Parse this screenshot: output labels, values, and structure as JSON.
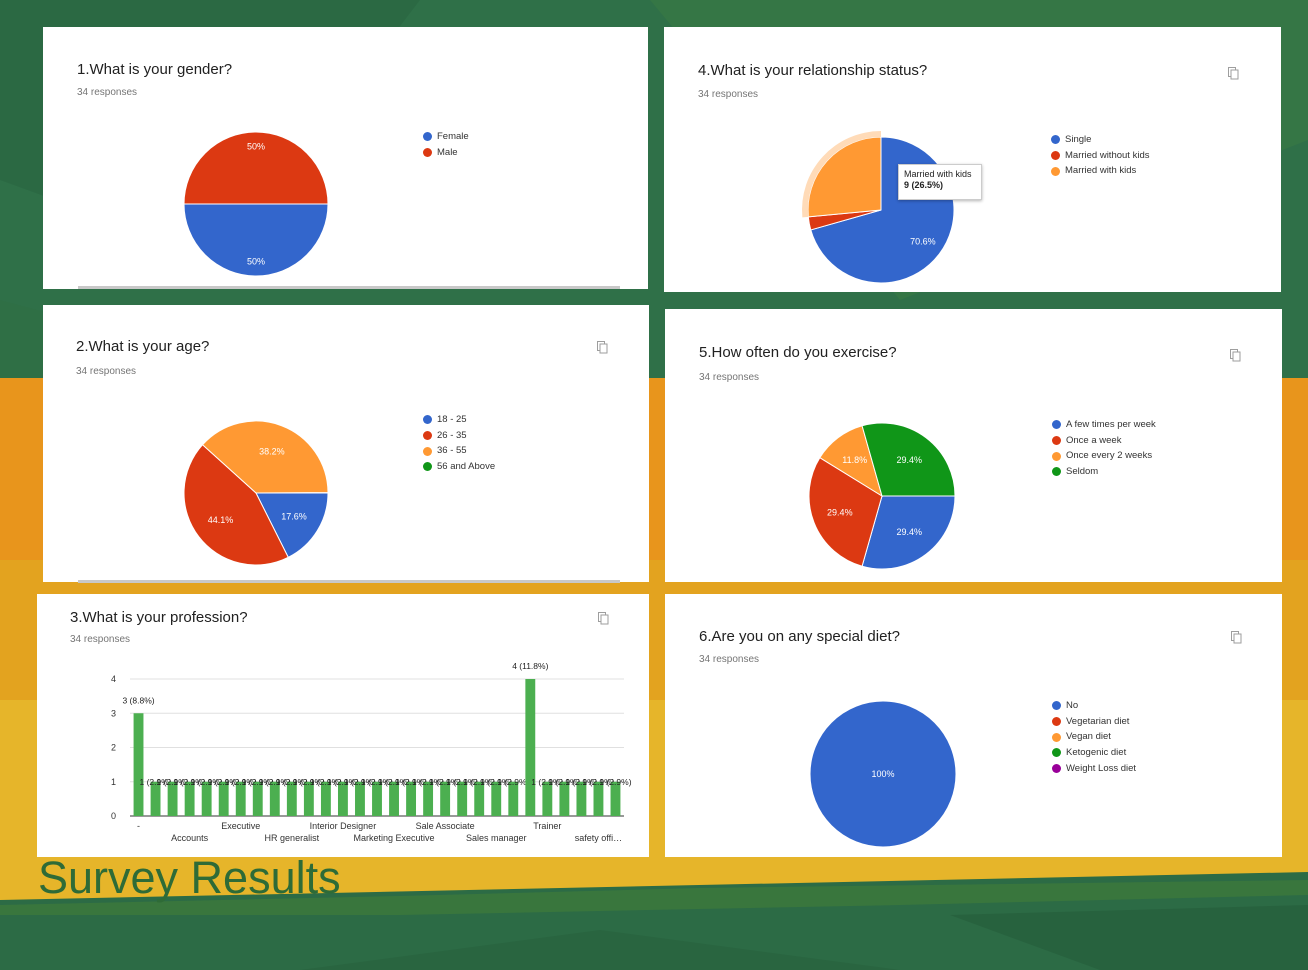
{
  "slide_title": "Survey Results",
  "colors": {
    "blue": "#3366cc",
    "red": "#dc3912",
    "orange": "#ff9933",
    "green": "#109618",
    "purple": "#990099",
    "bar": "#4caf50"
  },
  "icons": {
    "copy": "copy-icon"
  },
  "cards": {
    "gender": {
      "title": "1.What is your gender?",
      "responses": "34 responses"
    },
    "age": {
      "title": "2.What is your age?",
      "responses": "34 responses"
    },
    "profession": {
      "title": "3.What is your profession?",
      "responses": "34 responses"
    },
    "relationship": {
      "title": "4.What is your relationship status?",
      "responses": "34 responses",
      "tooltip": {
        "label": "Married with kids",
        "value": "9 (26.5%)"
      }
    },
    "exercise": {
      "title": "5.How often do you exercise?",
      "responses": "34 responses"
    },
    "diet": {
      "title": "6.Are you on any special diet?",
      "responses": "34 responses"
    }
  },
  "chart_data": [
    {
      "id": "gender",
      "type": "pie",
      "title": "1.What is your gender?",
      "slices": [
        {
          "label": "Female",
          "percent": 50,
          "color": "#3366cc",
          "data_label": "50%"
        },
        {
          "label": "Male",
          "percent": 50,
          "color": "#dc3912",
          "data_label": "50%"
        }
      ]
    },
    {
      "id": "age",
      "type": "pie",
      "title": "2.What is your age?",
      "slices": [
        {
          "label": "18 - 25",
          "percent": 17.6,
          "color": "#3366cc",
          "data_label": "17.6%"
        },
        {
          "label": "26 - 35",
          "percent": 44.1,
          "color": "#dc3912",
          "data_label": "44.1%"
        },
        {
          "label": "36 - 55",
          "percent": 38.2,
          "color": "#ff9933",
          "data_label": "38.2%"
        },
        {
          "label": "56 and Above",
          "percent": 0,
          "color": "#109618",
          "data_label": ""
        }
      ]
    },
    {
      "id": "relationship",
      "type": "pie",
      "title": "4.What is your relationship status?",
      "slices": [
        {
          "label": "Single",
          "percent": 70.6,
          "color": "#3366cc",
          "data_label": "70.6%"
        },
        {
          "label": "Married without kids",
          "percent": 2.9,
          "color": "#dc3912",
          "data_label": ""
        },
        {
          "label": "Married with kids",
          "percent": 26.5,
          "color": "#ff9933",
          "data_label": ""
        }
      ]
    },
    {
      "id": "exercise",
      "type": "pie",
      "title": "5.How often do you exercise?",
      "slices": [
        {
          "label": "A few times per week",
          "percent": 29.4,
          "color": "#3366cc",
          "data_label": "29.4%"
        },
        {
          "label": "Once a week",
          "percent": 29.4,
          "color": "#dc3912",
          "data_label": "29.4%"
        },
        {
          "label": "Once every 2 weeks",
          "percent": 11.8,
          "color": "#ff9933",
          "data_label": "11.8%"
        },
        {
          "label": "Seldom",
          "percent": 29.4,
          "color": "#109618",
          "data_label": "29.4%"
        }
      ]
    },
    {
      "id": "diet",
      "type": "pie",
      "title": "6.Are you on any special diet?",
      "slices": [
        {
          "label": "No",
          "percent": 100,
          "color": "#3366cc",
          "data_label": "100%"
        },
        {
          "label": "Vegetarian diet",
          "percent": 0,
          "color": "#dc3912",
          "data_label": ""
        },
        {
          "label": "Vegan diet",
          "percent": 0,
          "color": "#ff9933",
          "data_label": ""
        },
        {
          "label": "Ketogenic diet",
          "percent": 0,
          "color": "#109618",
          "data_label": ""
        },
        {
          "label": "Weight Loss diet",
          "percent": 0,
          "color": "#990099",
          "data_label": ""
        }
      ]
    },
    {
      "id": "profession",
      "type": "bar",
      "title": "3.What is your profession?",
      "ylim": [
        0,
        4
      ],
      "yticks": [
        "0",
        "1",
        "2",
        "3",
        "4"
      ],
      "values": [
        3,
        1,
        1,
        1,
        1,
        1,
        1,
        1,
        1,
        1,
        1,
        1,
        1,
        1,
        1,
        1,
        1,
        1,
        1,
        1,
        1,
        1,
        1,
        4,
        1,
        1,
        1,
        1,
        1
      ],
      "data_labels": [
        "3 (8.8%)",
        "1 (2.9%)",
        "1 (2.9%)",
        "1 (2.9%)",
        "1 (2.9%)",
        "1 (2.9%)",
        "1 (2.9%)",
        "1 (2.9%)",
        "1 (2.9%)",
        "1 (2.9%)",
        "1 (2.9%)",
        "1 (2.9%)",
        "1 (2.9%)",
        "1 (2.9%)",
        "1 (2.9%)",
        "1 (2.9%)",
        "1 (2.9%)",
        "1 (2.9%)",
        "1 (2.9%)",
        "1 (2.9%)",
        "1 (2.9%)",
        "1 (2.9%)",
        "1 (2.9%)",
        "4 (11.8%)",
        "1 (2.9%)",
        "1 (2.9%)",
        "1 (2.9%)",
        "1 (2.9%)",
        "1 (2.9%)"
      ],
      "category_labels": [
        {
          "index": 0,
          "text": "-"
        },
        {
          "index": 3,
          "text": "Accounts"
        },
        {
          "index": 6,
          "text": "Executive"
        },
        {
          "index": 9,
          "text": "HR generalist"
        },
        {
          "index": 12,
          "text": "Interior Designer"
        },
        {
          "index": 15,
          "text": "Marketing Executive"
        },
        {
          "index": 18,
          "text": "Sale Associate"
        },
        {
          "index": 21,
          "text": "Sales manager"
        },
        {
          "index": 24,
          "text": "Trainer"
        },
        {
          "index": 27,
          "text": "safety offi…"
        }
      ]
    }
  ]
}
